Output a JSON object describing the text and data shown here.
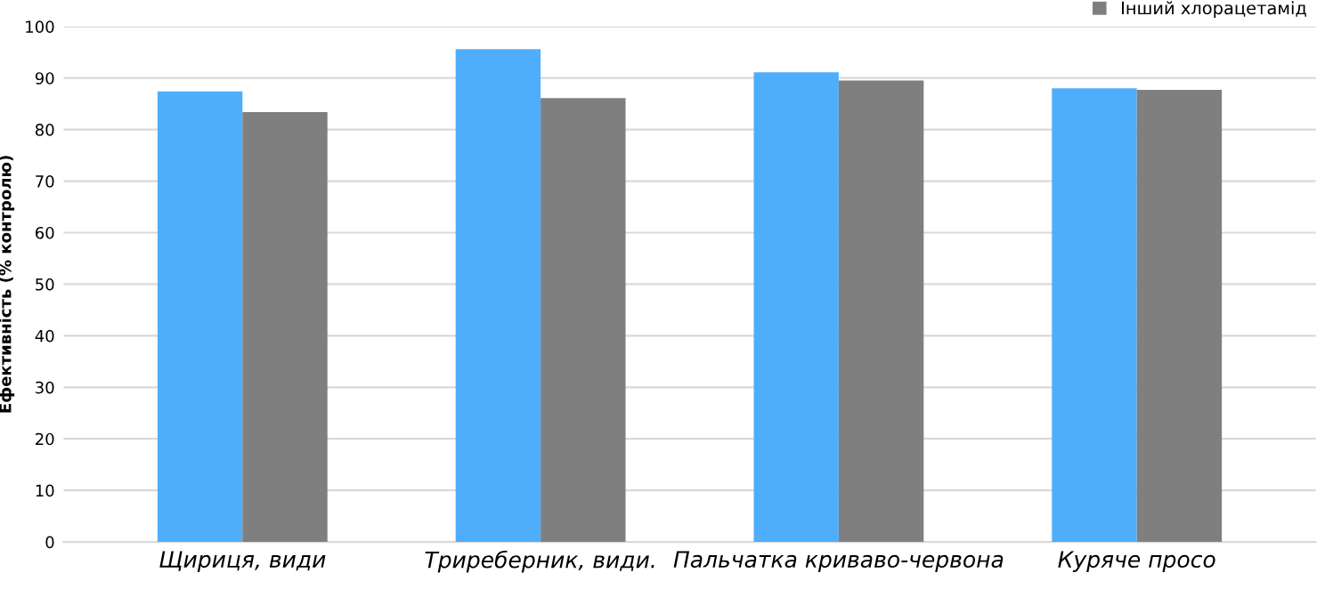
{
  "chart_data": {
    "type": "bar",
    "ylabel": "Ефективність (% контролю)",
    "categories": [
      "Щириця, види",
      "Триреберник, види.",
      "Пальчатка криваво-червона",
      "Куряче просо"
    ],
    "series": [
      {
        "color": "#4faefc",
        "values": [
          87.4,
          95.6,
          91.1,
          88.0
        ]
      },
      {
        "name": "Інший хлорацетамід",
        "color": "#7f7f7f",
        "values": [
          83.4,
          86.1,
          89.5,
          87.7
        ]
      }
    ],
    "ylim": [
      0,
      100
    ],
    "yticks": [
      0,
      10,
      20,
      30,
      40,
      50,
      60,
      70,
      80,
      90,
      100
    ],
    "grid": "y",
    "legend": "top right"
  }
}
